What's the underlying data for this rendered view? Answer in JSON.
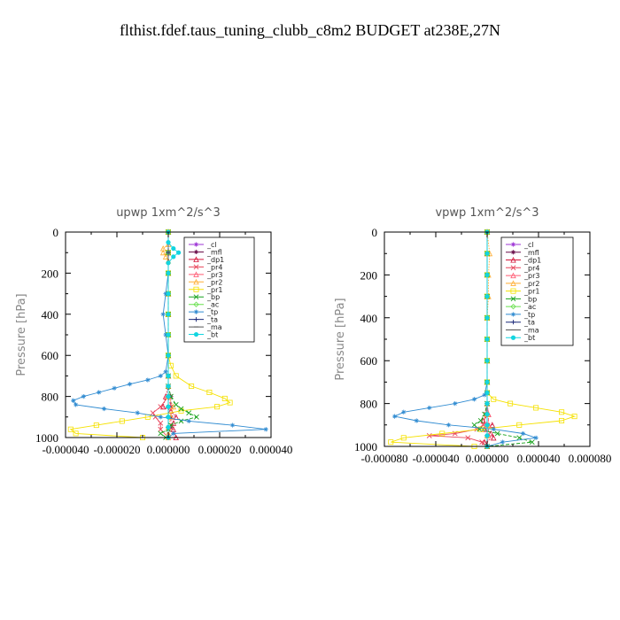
{
  "title": "flthist.fdef.taus_tuning_clubb_c8m2  BUDGET at238E,27N",
  "chart_data": [
    {
      "type": "line",
      "title": "upwp   1xm^2/s^3",
      "ylabel": "Pressure [hPa]",
      "xlim": [
        -4e-05,
        4e-05
      ],
      "ylim": [
        1000,
        0
      ],
      "y_inverted": true,
      "xticks": [
        "-0.000040",
        "-0.000020",
        "0.000000",
        "0.000020",
        "0.000040"
      ],
      "yticks": [
        "0",
        "200",
        "400",
        "600",
        "800",
        "1000"
      ],
      "legend": {
        "position": "upper-right-inside",
        "entries": [
          "_cl",
          "_mfl",
          "_dp1",
          "_pr4",
          "_pr3",
          "_pr2",
          "_pr1",
          "_bp",
          "_ac",
          "_tp",
          "_ta",
          "_ma",
          "_bt"
        ]
      },
      "series": [
        {
          "name": "_cl",
          "color": "#9e36d6",
          "p": [
            0,
            100,
            200,
            300,
            400,
            500,
            600,
            700,
            750,
            800,
            850,
            900,
            950,
            1000
          ],
          "x": [
            0,
            0,
            0,
            0,
            0,
            0,
            0,
            0,
            0,
            0,
            0,
            0,
            0,
            0
          ]
        },
        {
          "name": "_mfl",
          "color": "#6b0f4a",
          "p": [
            0,
            100,
            200,
            300,
            400,
            500,
            600,
            700,
            750,
            800,
            850,
            900,
            950,
            1000
          ],
          "x": [
            0,
            0,
            0,
            0,
            0,
            0,
            0,
            0,
            0,
            1e-06,
            1e-06,
            1e-06,
            1e-06,
            0
          ]
        },
        {
          "name": "_dp1",
          "color": "#d4163a",
          "p": [
            0,
            100,
            200,
            300,
            400,
            500,
            600,
            700,
            750,
            800,
            850,
            870,
            900,
            930,
            960,
            1000
          ],
          "x": [
            0,
            0,
            0,
            0,
            0,
            0,
            0,
            0,
            0,
            -1e-06,
            -2e-06,
            1e-06,
            3e-06,
            2e-06,
            2e-06,
            3e-06
          ]
        },
        {
          "name": "_pr4",
          "color": "#e8445a",
          "p": [
            0,
            100,
            200,
            300,
            400,
            500,
            600,
            700,
            750,
            800,
            850,
            880,
            900,
            930,
            960,
            1000
          ],
          "x": [
            0,
            0,
            0,
            0,
            0,
            0,
            0,
            0,
            0,
            0,
            -3e-06,
            -6e-06,
            -5e-06,
            -3e-06,
            -3e-06,
            0
          ]
        },
        {
          "name": "_pr3",
          "color": "#ff5b73",
          "p": [
            0,
            100,
            200,
            300,
            400,
            500,
            600,
            700,
            750,
            800,
            850,
            900,
            950,
            1000
          ],
          "x": [
            0,
            0,
            0,
            0,
            0,
            0,
            0,
            0,
            0,
            0,
            1e-06,
            1e-06,
            1e-06,
            0
          ]
        },
        {
          "name": "_pr2",
          "color": "#ffae33",
          "p": [
            0,
            60,
            80,
            100,
            120,
            140,
            200,
            300,
            400,
            500,
            600,
            700,
            750,
            800,
            850,
            900,
            950,
            980,
            1000
          ],
          "x": [
            0,
            0,
            -2e-06,
            -2e-06,
            -1e-06,
            0,
            0,
            0,
            0,
            0,
            0,
            0,
            0,
            0,
            2e-06,
            1e-06,
            0,
            0,
            0
          ]
        },
        {
          "name": "_pr1",
          "color": "#f5e100",
          "p": [
            0,
            100,
            200,
            300,
            400,
            500,
            600,
            650,
            700,
            750,
            780,
            810,
            830,
            850,
            870,
            900,
            920,
            940,
            960,
            980,
            1000
          ],
          "x": [
            0,
            0,
            0,
            0,
            0,
            0,
            0,
            1e-06,
            3e-06,
            9e-06,
            1.6e-05,
            2.2e-05,
            2.4e-05,
            1.9e-05,
            5e-06,
            -8e-06,
            -1.8e-05,
            -2.8e-05,
            -3.8e-05,
            -3.6e-05,
            -1e-05
          ]
        },
        {
          "name": "_bp",
          "color": "#17a21c",
          "p": [
            0,
            100,
            200,
            300,
            400,
            500,
            600,
            700,
            750,
            800,
            840,
            860,
            880,
            900,
            920,
            940,
            960,
            980,
            1000
          ],
          "x": [
            0,
            0,
            0,
            0,
            0,
            0,
            0,
            0,
            0,
            1e-06,
            3e-06,
            5e-06,
            8e-06,
            1.1e-05,
            5e-06,
            1e-06,
            0,
            -3e-06,
            -1e-06
          ]
        },
        {
          "name": "_ac",
          "color": "#69e04f",
          "p": [
            0,
            100,
            200,
            300,
            400,
            500,
            600,
            700,
            750,
            800,
            850,
            900,
            950,
            1000
          ],
          "x": [
            0,
            0,
            0,
            0,
            0,
            0,
            0,
            0,
            0,
            0,
            0,
            0,
            0,
            0
          ]
        },
        {
          "name": "_tp",
          "color": "#2f8bd1",
          "p": [
            0,
            100,
            200,
            300,
            400,
            500,
            600,
            680,
            700,
            720,
            740,
            760,
            780,
            800,
            820,
            840,
            860,
            880,
            900,
            920,
            940,
            960,
            980,
            1000
          ],
          "x": [
            0,
            0,
            0,
            -1e-06,
            -2e-06,
            -1e-06,
            0,
            -1e-06,
            -3e-06,
            -8e-06,
            -1.5e-05,
            -2.1e-05,
            -2.7e-05,
            -3.3e-05,
            -3.7e-05,
            -3.6e-05,
            -2.5e-05,
            -1.2e-05,
            -3e-06,
            8e-06,
            2.5e-05,
            3.8e-05,
            2e-06,
            0
          ]
        },
        {
          "name": "_ta",
          "color": "#1c2a7a",
          "p": [
            0,
            100,
            200,
            300,
            400,
            500,
            600,
            700,
            750,
            800,
            850,
            900,
            950,
            1000
          ],
          "x": [
            0,
            0,
            0,
            0,
            0,
            0,
            0,
            0,
            0,
            0,
            0,
            0,
            0,
            0
          ]
        },
        {
          "name": "_ma",
          "color": "#555555",
          "p": [
            0,
            100,
            200,
            300,
            400,
            500,
            600,
            700,
            750,
            800,
            850,
            900,
            950,
            1000
          ],
          "x": [
            0,
            0,
            0,
            0,
            0,
            0,
            0,
            0,
            0,
            0,
            0,
            0,
            0,
            0
          ]
        },
        {
          "name": "_bt",
          "color": "#12d5e0",
          "p": [
            0,
            50,
            80,
            100,
            120,
            150,
            200,
            300,
            400,
            500,
            600,
            700,
            750,
            800,
            850,
            900,
            950,
            1000
          ],
          "x": [
            0,
            0,
            2e-06,
            4e-06,
            2e-06,
            0,
            0,
            0,
            0,
            0,
            0,
            0,
            0,
            0,
            0,
            0,
            0,
            0
          ]
        }
      ]
    },
    {
      "type": "line",
      "title": "vpwp   1xm^2/s^3",
      "ylabel": "Pressure [hPa]",
      "xlim": [
        -8e-05,
        8e-05
      ],
      "ylim": [
        1000,
        0
      ],
      "y_inverted": true,
      "xticks": [
        "-0.000080",
        "-0.000040",
        "0.000000",
        "0.000040",
        "0.000080"
      ],
      "yticks": [
        "0",
        "200",
        "400",
        "600",
        "800",
        "1000"
      ],
      "legend": {
        "position": "upper-right-inside",
        "entries": [
          "_cl",
          "_mfl",
          "_dp1",
          "_pr4",
          "_pr3",
          "_pr2",
          "_pr1",
          "_bp",
          "_ac",
          "_tp",
          "_ta",
          "_ma",
          "_bt"
        ]
      },
      "series": [
        {
          "name": "_cl",
          "color": "#9e36d6",
          "p": [
            0,
            100,
            200,
            300,
            400,
            500,
            600,
            700,
            750,
            800,
            850,
            900,
            950,
            1000
          ],
          "x": [
            0,
            0,
            0,
            0,
            0,
            0,
            0,
            0,
            0,
            0,
            0,
            0,
            0,
            0
          ]
        },
        {
          "name": "_mfl",
          "color": "#6b0f4a",
          "p": [
            0,
            100,
            200,
            300,
            400,
            500,
            600,
            700,
            750,
            800,
            850,
            900,
            950,
            1000
          ],
          "x": [
            0,
            0,
            0,
            0,
            0,
            0,
            0,
            0,
            0,
            0,
            0,
            0,
            0,
            0
          ]
        },
        {
          "name": "_dp1",
          "color": "#d4163a",
          "p": [
            0,
            100,
            200,
            300,
            400,
            500,
            600,
            700,
            750,
            800,
            850,
            880,
            900,
            920,
            940,
            960,
            980,
            1000
          ],
          "x": [
            0,
            0,
            0,
            0,
            0,
            0,
            0,
            0,
            0,
            0,
            1e-06,
            -3e-06,
            4e-06,
            -2e-06,
            3e-06,
            5e-06,
            -2e-06,
            0
          ]
        },
        {
          "name": "_pr4",
          "color": "#e8445a",
          "p": [
            0,
            100,
            200,
            300,
            400,
            500,
            600,
            700,
            750,
            800,
            850,
            900,
            920,
            940,
            950,
            960,
            980,
            1000
          ],
          "x": [
            0,
            0,
            0,
            0,
            0,
            0,
            0,
            0,
            0,
            0,
            -1e-06,
            -3e-06,
            -8e-06,
            -2.5e-05,
            -4.5e-05,
            -1.5e-05,
            -4e-06,
            0
          ]
        },
        {
          "name": "_pr3",
          "color": "#ff5b73",
          "p": [
            0,
            100,
            200,
            300,
            400,
            500,
            600,
            700,
            750,
            800,
            850,
            900,
            950,
            1000
          ],
          "x": [
            0,
            0,
            0,
            0,
            0,
            0,
            0,
            0,
            0,
            0,
            1e-06,
            1e-06,
            1e-06,
            0
          ]
        },
        {
          "name": "_pr2",
          "color": "#ffae33",
          "p": [
            0,
            100,
            200,
            300,
            400,
            500,
            600,
            700,
            750,
            800,
            850,
            900,
            950,
            1000
          ],
          "x": [
            0,
            2e-06,
            1e-06,
            1e-06,
            0,
            0,
            0,
            0,
            0,
            0,
            0,
            0,
            0,
            0
          ]
        },
        {
          "name": "_pr1",
          "color": "#f5e100",
          "p": [
            0,
            100,
            200,
            300,
            400,
            500,
            600,
            700,
            750,
            780,
            800,
            820,
            840,
            860,
            880,
            900,
            920,
            940,
            960,
            980,
            1000
          ],
          "x": [
            0,
            0,
            0,
            0,
            0,
            0,
            0,
            0,
            0,
            5e-06,
            1.8e-05,
            3.8e-05,
            5.8e-05,
            6.8e-05,
            5.8e-05,
            2.5e-05,
            -5e-06,
            -3.5e-05,
            -6.5e-05,
            -7.5e-05,
            -1e-05
          ]
        },
        {
          "name": "_bp",
          "color": "#17a21c",
          "p": [
            0,
            100,
            200,
            300,
            400,
            500,
            600,
            700,
            750,
            800,
            850,
            880,
            900,
            920,
            940,
            960,
            980,
            1000
          ],
          "x": [
            0,
            0,
            0,
            0,
            0,
            0,
            0,
            0,
            0,
            0,
            -2e-06,
            -5e-06,
            -1e-05,
            -6e-06,
            8e-06,
            2.5e-05,
            3.5e-05,
            0
          ]
        },
        {
          "name": "_ac",
          "color": "#69e04f",
          "p": [
            0,
            100,
            200,
            300,
            400,
            500,
            600,
            700,
            750,
            800,
            850,
            900,
            950,
            1000
          ],
          "x": [
            0,
            0,
            0,
            0,
            0,
            0,
            0,
            0,
            0,
            0,
            0,
            0,
            0,
            0
          ]
        },
        {
          "name": "_tp",
          "color": "#2f8bd1",
          "p": [
            0,
            100,
            200,
            300,
            400,
            500,
            600,
            700,
            760,
            780,
            800,
            820,
            840,
            860,
            880,
            900,
            920,
            940,
            960,
            980,
            1000
          ],
          "x": [
            0,
            0,
            0,
            0,
            0,
            0,
            0,
            0,
            -2e-06,
            -1e-05,
            -2.5e-05,
            -4.5e-05,
            -6.5e-05,
            -7.2e-05,
            -5.5e-05,
            -3e-05,
            5e-06,
            2.8e-05,
            3.8e-05,
            1.2e-05,
            0
          ]
        },
        {
          "name": "_ta",
          "color": "#1c2a7a",
          "p": [
            0,
            100,
            200,
            300,
            400,
            500,
            600,
            700,
            750,
            800,
            850,
            900,
            950,
            1000
          ],
          "x": [
            0,
            0,
            0,
            0,
            0,
            0,
            0,
            0,
            0,
            0,
            0,
            0,
            0,
            0
          ]
        },
        {
          "name": "_ma",
          "color": "#555555",
          "p": [
            0,
            100,
            200,
            300,
            400,
            500,
            600,
            700,
            750,
            800,
            850,
            900,
            950,
            1000
          ],
          "x": [
            0,
            0,
            0,
            0,
            0,
            0,
            0,
            0,
            0,
            0,
            0,
            0,
            0,
            0
          ]
        },
        {
          "name": "_bt",
          "color": "#12d5e0",
          "p": [
            0,
            100,
            200,
            300,
            400,
            500,
            600,
            700,
            750,
            800,
            850,
            900,
            950,
            1000
          ],
          "x": [
            0,
            0,
            0,
            0,
            0,
            0,
            0,
            0,
            0,
            0,
            0,
            0,
            0,
            0
          ]
        }
      ]
    }
  ]
}
